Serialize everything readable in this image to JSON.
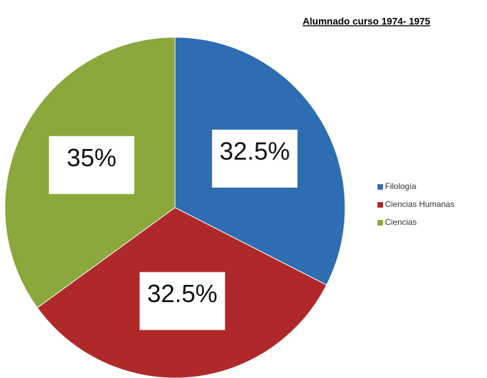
{
  "chart_data": {
    "type": "pie",
    "title": "Alumnado curso 1974- 1975",
    "categories": [
      "Filología",
      "Ciencias Humanas",
      "Ciencias"
    ],
    "values": [
      32.5,
      32.5,
      35
    ],
    "value_labels": [
      "32.5%",
      "32.5%",
      "35%"
    ],
    "colors": [
      "#2f6db3",
      "#b0292a",
      "#8aa83b"
    ],
    "legend": "right"
  }
}
